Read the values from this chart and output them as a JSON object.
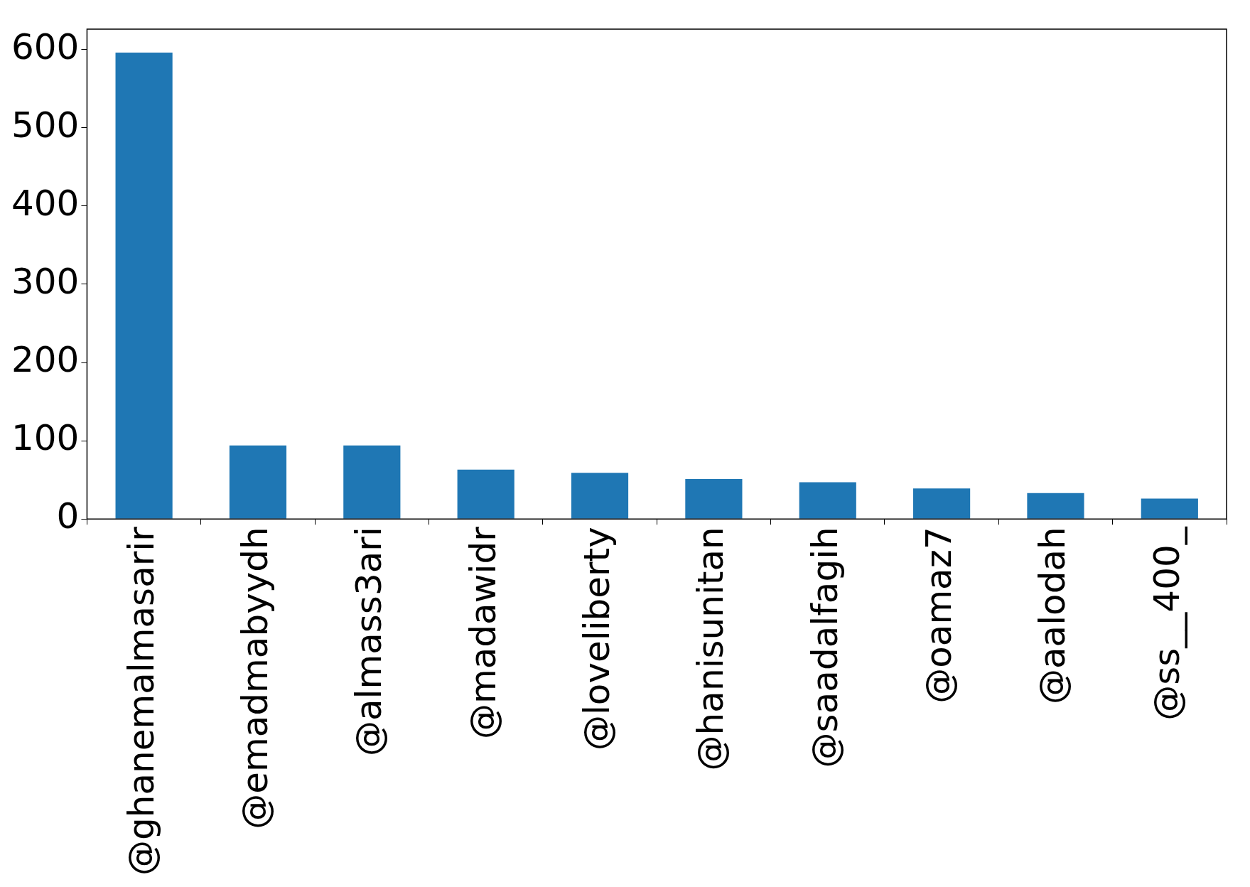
{
  "chart_data": {
    "type": "bar",
    "categories": [
      "@ghanemalmasarir",
      "@emadmabyydh",
      "@almass3ari",
      "@madawidr",
      "@loveliberty",
      "@hanisunitan",
      "@saadalfagih",
      "@oamaz7",
      "@aalodah",
      "@ss__400_"
    ],
    "values": [
      596,
      94,
      94,
      63,
      59,
      51,
      47,
      39,
      33,
      26
    ],
    "color": "#1f77b4",
    "ylim": [
      0,
      626
    ],
    "yticks": [
      0,
      100,
      200,
      300,
      400,
      500,
      600
    ],
    "grid": false,
    "legend": false
  }
}
